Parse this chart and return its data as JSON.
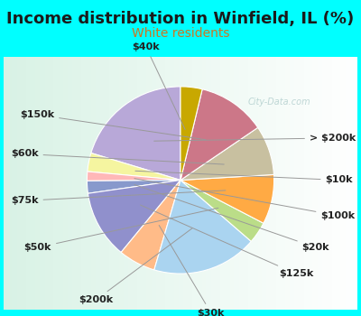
{
  "title": "Income distribution in Winfield, IL (%)",
  "subtitle": "White residents",
  "title_color": "#1a1a1a",
  "subtitle_color": "#cc7722",
  "background_color": "#00ffff",
  "watermark": "City-Data.com",
  "labels": [
    "> $200k",
    "$10k",
    "$100k",
    "$20k",
    "$125k",
    "$30k",
    "$200k",
    "$50k",
    "$75k",
    "$60k",
    "$150k",
    "$40k"
  ],
  "values": [
    19.0,
    3.0,
    1.5,
    2.0,
    11.0,
    6.0,
    17.0,
    3.5,
    8.0,
    8.0,
    11.0,
    3.5
  ],
  "colors": [
    "#b8a8d8",
    "#f5f5a0",
    "#ffb8b8",
    "#8899cc",
    "#9090cc",
    "#ffbb88",
    "#aad4f0",
    "#bbdd88",
    "#ffaa44",
    "#c8c0a0",
    "#cc7788",
    "#c8a800"
  ],
  "startangle": 90,
  "label_fontsize": 8,
  "title_fontsize": 13,
  "subtitle_fontsize": 10
}
